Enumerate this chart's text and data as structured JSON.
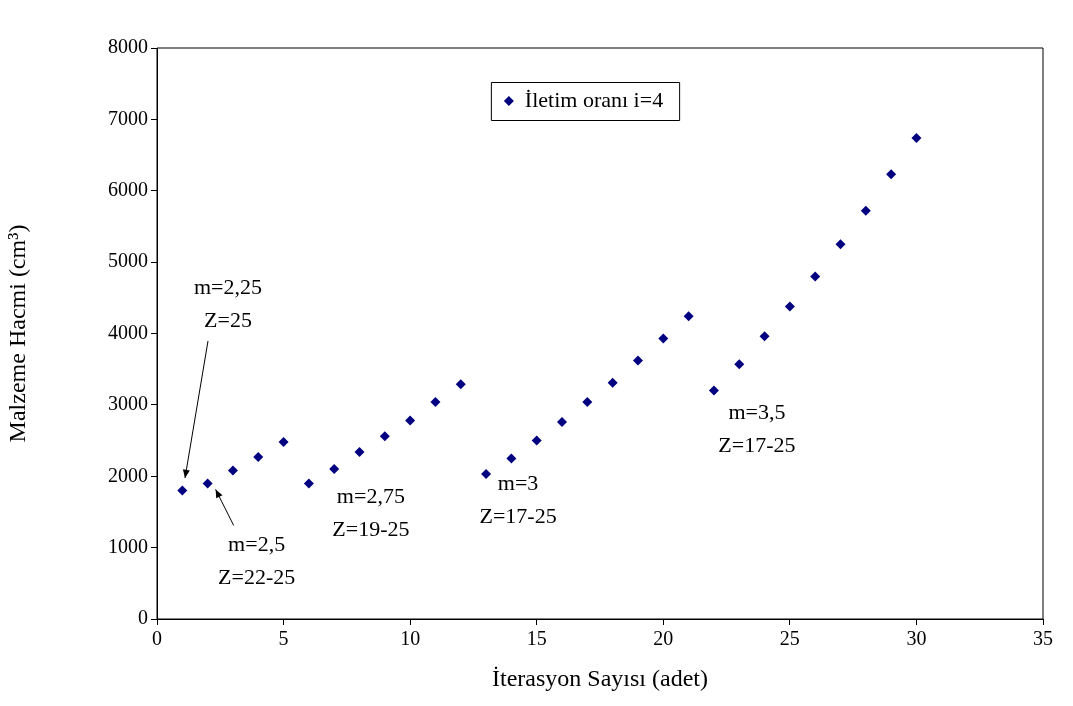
{
  "chart_data": {
    "type": "scatter",
    "xlabel": "İterasyon Sayısı (adet)",
    "ylabel": "Malzeme Hacmi (cm³)",
    "xlim": [
      0,
      35
    ],
    "xticks": [
      0,
      5,
      10,
      15,
      20,
      25,
      30,
      35
    ],
    "ylim": [
      0,
      8000
    ],
    "yticks": [
      0,
      1000,
      2000,
      3000,
      4000,
      5000,
      6000,
      7000,
      8000
    ],
    "grid": false,
    "legend": "top",
    "marker": "diamond",
    "series": [
      {
        "name": "İletim oranı i=4",
        "color": "#000080",
        "x": [
          1,
          2,
          3,
          4,
          5,
          6,
          7,
          8,
          9,
          10,
          11,
          12,
          13,
          14,
          15,
          16,
          17,
          18,
          19,
          20,
          21,
          22,
          23,
          24,
          25,
          26,
          27,
          28,
          29,
          30
        ],
        "values": [
          1800,
          1900,
          2080,
          2270,
          2480,
          1900,
          2100,
          2340,
          2560,
          2780,
          3040,
          3290,
          2030,
          2250,
          2500,
          2760,
          3040,
          3310,
          3620,
          3930,
          4240,
          3200,
          3570,
          3960,
          4380,
          4800,
          5250,
          5720,
          6230,
          6740
        ]
      }
    ],
    "annotations": [
      "m=2,25\nZ=25",
      {
        "text": "m=2,5\nZ=22-25",
        "x": 2,
        "y": 1900
      },
      {
        "text": "m=2,75\nZ=19-25",
        "x": 6,
        "y": 1900
      },
      {
        "text": "m=3\nZ=17-25",
        "x": 13,
        "y": 2030
      },
      {
        "text": "m=3,5\nZ=17-25",
        "x": 22,
        "y": 3200
      }
    ]
  }
}
